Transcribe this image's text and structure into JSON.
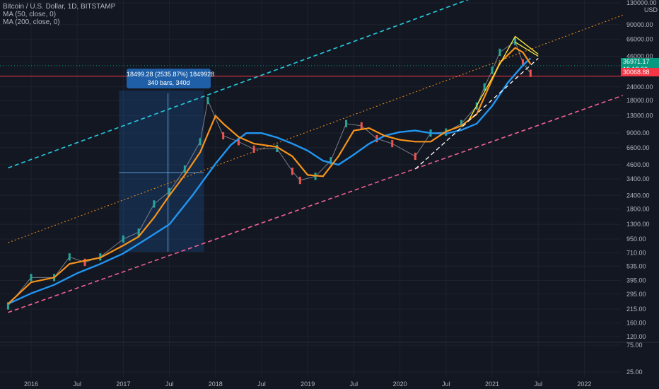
{
  "header": {
    "symbol": "Bitcoin / U.S. Dollar, 1D, BITSTAMP",
    "ma50": "MA (50, close, 0)",
    "ma200": "MA (200, close, 0)"
  },
  "measurement": {
    "line1": "18499.28 (2535.87%) 1849928",
    "line2": "340 bars, 340d"
  },
  "price_tags": {
    "last_price": "36971.17",
    "countdown": "19:18:00",
    "level": "30068.88"
  },
  "colors": {
    "background": "#131722",
    "ma50": "#f7931a",
    "ma200": "#2196f3",
    "upper_channel": "#26c6da",
    "mid_channel": "#f7931a",
    "lower_channel": "#f06292",
    "wedge": "#ffeb3b",
    "level_line": "#f23645",
    "measure_box": "#1e5fa8",
    "tag_green": "#089981",
    "tag_red": "#f23645"
  },
  "chart_data": {
    "type": "line",
    "scale": "log",
    "title": "Bitcoin / U.S. Dollar, 1D, BITSTAMP",
    "currency": "USD",
    "y_ticks": [
      "130000.00",
      "90000.00",
      "66000.00",
      "46000.00",
      "24000.00",
      "18000.00",
      "13000.00",
      "9000.00",
      "6600.00",
      "4600.00",
      "3400.00",
      "2400.00",
      "1800.00",
      "1300.00",
      "950.00",
      "710.00",
      "535.00",
      "395.00",
      "295.00",
      "215.00",
      "160.00",
      "120.00",
      "75.00",
      "25.00"
    ],
    "x_ticks": [
      "2016",
      "Jul",
      "2017",
      "Jul",
      "2018",
      "Jul",
      "2019",
      "Jul",
      "2020",
      "Jul",
      "2021",
      "Jul",
      "2022"
    ],
    "series": [
      {
        "name": "Bitcoin / U.S. Dollar",
        "x": [
          "2015-10",
          "2016-01",
          "2016-04",
          "2016-06",
          "2016-08",
          "2016-10",
          "2017-01",
          "2017-03",
          "2017-05",
          "2017-07",
          "2017-09",
          "2017-11",
          "2017-12",
          "2018-02",
          "2018-04",
          "2018-06",
          "2018-09",
          "2018-11",
          "2018-12",
          "2019-02",
          "2019-04",
          "2019-06",
          "2019-08",
          "2019-10",
          "2019-12",
          "2020-03",
          "2020-05",
          "2020-07",
          "2020-09",
          "2020-11",
          "2020-12",
          "2021-01",
          "2021-02",
          "2021-04",
          "2021-05",
          "2021-06"
        ],
        "values": [
          230,
          420,
          420,
          650,
          580,
          650,
          950,
          1100,
          2000,
          2600,
          4200,
          7500,
          18000,
          8500,
          7500,
          6400,
          6500,
          4000,
          3300,
          3600,
          5000,
          11000,
          10500,
          8000,
          7200,
          5500,
          9000,
          9200,
          11000,
          16000,
          24000,
          34000,
          50000,
          63000,
          40000,
          32000
        ]
      },
      {
        "name": "MA (50, close, 0)",
        "x": [
          "2015-10",
          "2016-01",
          "2016-04",
          "2016-06",
          "2016-08",
          "2016-10",
          "2017-01",
          "2017-03",
          "2017-05",
          "2017-07",
          "2017-09",
          "2017-11",
          "2018-01",
          "2018-02",
          "2018-04",
          "2018-06",
          "2018-09",
          "2018-11",
          "2019-01",
          "2019-03",
          "2019-05",
          "2019-07",
          "2019-09",
          "2019-11",
          "2020-01",
          "2020-03",
          "2020-05",
          "2020-07",
          "2020-09",
          "2020-11",
          "2021-01",
          "2021-02",
          "2021-04",
          "2021-05",
          "2021-06"
        ],
        "values": [
          240,
          380,
          420,
          560,
          600,
          640,
          830,
          1000,
          1500,
          2400,
          3700,
          6000,
          13000,
          11000,
          8300,
          7200,
          6700,
          5500,
          3700,
          3600,
          5500,
          9500,
          10000,
          8500,
          7800,
          7500,
          7500,
          9300,
          10500,
          13500,
          28000,
          40000,
          55000,
          50000,
          39000
        ]
      },
      {
        "name": "MA (200, close, 0)",
        "x": [
          "2015-10",
          "2016-01",
          "2016-04",
          "2016-07",
          "2016-10",
          "2017-01",
          "2017-04",
          "2017-07",
          "2017-10",
          "2018-01",
          "2018-03",
          "2018-05",
          "2018-07",
          "2018-09",
          "2018-11",
          "2019-01",
          "2019-03",
          "2019-05",
          "2019-07",
          "2019-09",
          "2019-11",
          "2020-01",
          "2020-03",
          "2020-05",
          "2020-07",
          "2020-09",
          "2020-11",
          "2021-01",
          "2021-03",
          "2021-05",
          "2021-06"
        ],
        "values": [
          240,
          300,
          360,
          460,
          560,
          700,
          950,
          1300,
          2400,
          4700,
          7000,
          9000,
          9000,
          8200,
          7200,
          6200,
          5000,
          4600,
          5700,
          7200,
          8500,
          9200,
          9500,
          9000,
          8900,
          9600,
          11000,
          16000,
          26000,
          38000,
          44000
        ]
      }
    ],
    "drawings": {
      "upper_channel": {
        "x": [
          "2015-10",
          "2021-04"
        ],
        "values": [
          4300,
          220000
        ]
      },
      "mid_channel": {
        "x": [
          "2015-10",
          "2022-06"
        ],
        "values": [
          880,
          110000
        ]
      },
      "lower_channel": {
        "x": [
          "2015-10",
          "2022-06"
        ],
        "values": [
          200,
          20000
        ]
      },
      "level_30068": 30068.88,
      "level_37600": 37600
    }
  }
}
